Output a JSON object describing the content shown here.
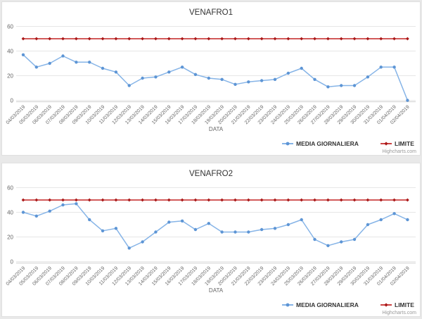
{
  "page": {
    "background": "#e9e9e9"
  },
  "chart_data": [
    {
      "type": "line",
      "title": "VENAFRO1",
      "xlabel": "DATA",
      "ylabel": "",
      "ylim": [
        0,
        60
      ],
      "yticks": [
        0,
        20,
        40,
        60
      ],
      "grid": true,
      "legend_position": "bottom-right",
      "credits": "Highcharts.com",
      "categories": [
        "04/03/2019",
        "05/03/2019",
        "06/03/2019",
        "07/03/2019",
        "08/03/2019",
        "09/03/2019",
        "10/03/2019",
        "11/03/2019",
        "12/03/2019",
        "13/03/2019",
        "14/03/2019",
        "15/03/2019",
        "16/03/2019",
        "17/03/2019",
        "18/03/2019",
        "19/03/2019",
        "20/03/2019",
        "21/03/2019",
        "22/03/2019",
        "23/03/2019",
        "24/03/2019",
        "25/03/2019",
        "26/03/2019",
        "27/03/2019",
        "28/03/2019",
        "29/03/2019",
        "30/03/2019",
        "31/03/2019",
        "01/04/2019",
        "02/04/2019"
      ],
      "series": [
        {
          "name": "MEDIA GIORNALIERA",
          "line_color": "#86b4e7",
          "marker_color": "#5d95d5",
          "marker": "circle",
          "values": [
            37,
            27,
            30,
            36,
            31,
            31,
            26,
            23,
            12,
            18,
            19,
            23,
            27,
            21,
            18,
            17,
            13,
            15,
            16,
            17,
            22,
            26,
            17,
            11,
            12,
            12,
            19,
            27,
            27,
            0
          ]
        },
        {
          "name": "LIMITE",
          "line_color": "#cc4343",
          "marker_color": "#a91919",
          "marker": "diamond",
          "values": [
            50,
            50,
            50,
            50,
            50,
            50,
            50,
            50,
            50,
            50,
            50,
            50,
            50,
            50,
            50,
            50,
            50,
            50,
            50,
            50,
            50,
            50,
            50,
            50,
            50,
            50,
            50,
            50,
            50,
            50
          ]
        }
      ]
    },
    {
      "type": "line",
      "title": "VENAFRO2",
      "xlabel": "DATA",
      "ylabel": "",
      "ylim": [
        0,
        60
      ],
      "yticks": [
        0,
        20,
        40,
        60
      ],
      "grid": true,
      "legend_position": "bottom-right",
      "credits": "Highcharts.com",
      "categories": [
        "04/03/2019",
        "05/03/2019",
        "06/03/2019",
        "07/03/2019",
        "08/03/2019",
        "09/03/2019",
        "10/03/2019",
        "11/03/2019",
        "12/03/2019",
        "13/03/2019",
        "14/03/2019",
        "15/03/2019",
        "16/03/2019",
        "17/03/2019",
        "18/03/2019",
        "19/03/2019",
        "20/03/2019",
        "21/03/2019",
        "22/03/2019",
        "23/03/2019",
        "24/03/2019",
        "25/03/2019",
        "26/03/2019",
        "27/03/2019",
        "28/03/2019",
        "29/03/2019",
        "30/03/2019",
        "31/03/2019",
        "01/04/2019",
        "02/04/2019"
      ],
      "series": [
        {
          "name": "MEDIA GIORNALIERA",
          "line_color": "#86b4e7",
          "marker_color": "#5d95d5",
          "marker": "circle",
          "values": [
            40,
            37,
            41,
            46,
            47,
            34,
            25,
            27,
            11,
            16,
            24,
            32,
            33,
            26,
            31,
            24,
            24,
            24,
            26,
            27,
            30,
            34,
            18,
            13,
            16,
            18,
            30,
            34,
            39,
            34
          ]
        },
        {
          "name": "LIMITE",
          "line_color": "#cc4343",
          "marker_color": "#a91919",
          "marker": "diamond",
          "values": [
            50,
            50,
            50,
            50,
            50,
            50,
            50,
            50,
            50,
            50,
            50,
            50,
            50,
            50,
            50,
            50,
            50,
            50,
            50,
            50,
            50,
            50,
            50,
            50,
            50,
            50,
            50,
            50,
            50,
            50
          ]
        }
      ]
    }
  ]
}
